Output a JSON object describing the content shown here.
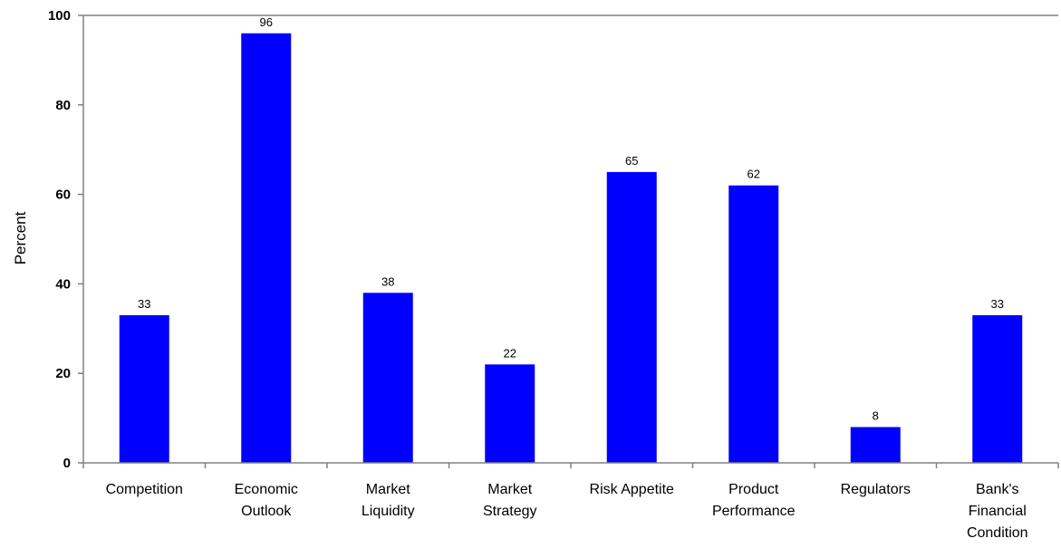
{
  "chart_data": {
    "type": "bar",
    "categories": [
      [
        "Competition"
      ],
      [
        "Economic",
        "Outlook"
      ],
      [
        "Market",
        "Liquidity"
      ],
      [
        "Market",
        "Strategy"
      ],
      [
        "Risk Appetite"
      ],
      [
        "Product",
        "Performance"
      ],
      [
        "Regulators"
      ],
      [
        "Bank's",
        "Financial",
        "Condition"
      ]
    ],
    "values": [
      33,
      96,
      38,
      22,
      65,
      62,
      8,
      33
    ],
    "data_labels": [
      "33",
      "96",
      "38",
      "22",
      "65",
      "62",
      "8",
      "33"
    ],
    "ylabel": "Percent",
    "ylim": [
      0,
      100
    ],
    "yticks": [
      0,
      20,
      40,
      60,
      80,
      100
    ],
    "bar_color": "#0000ff",
    "grid": false,
    "legend": "none"
  }
}
